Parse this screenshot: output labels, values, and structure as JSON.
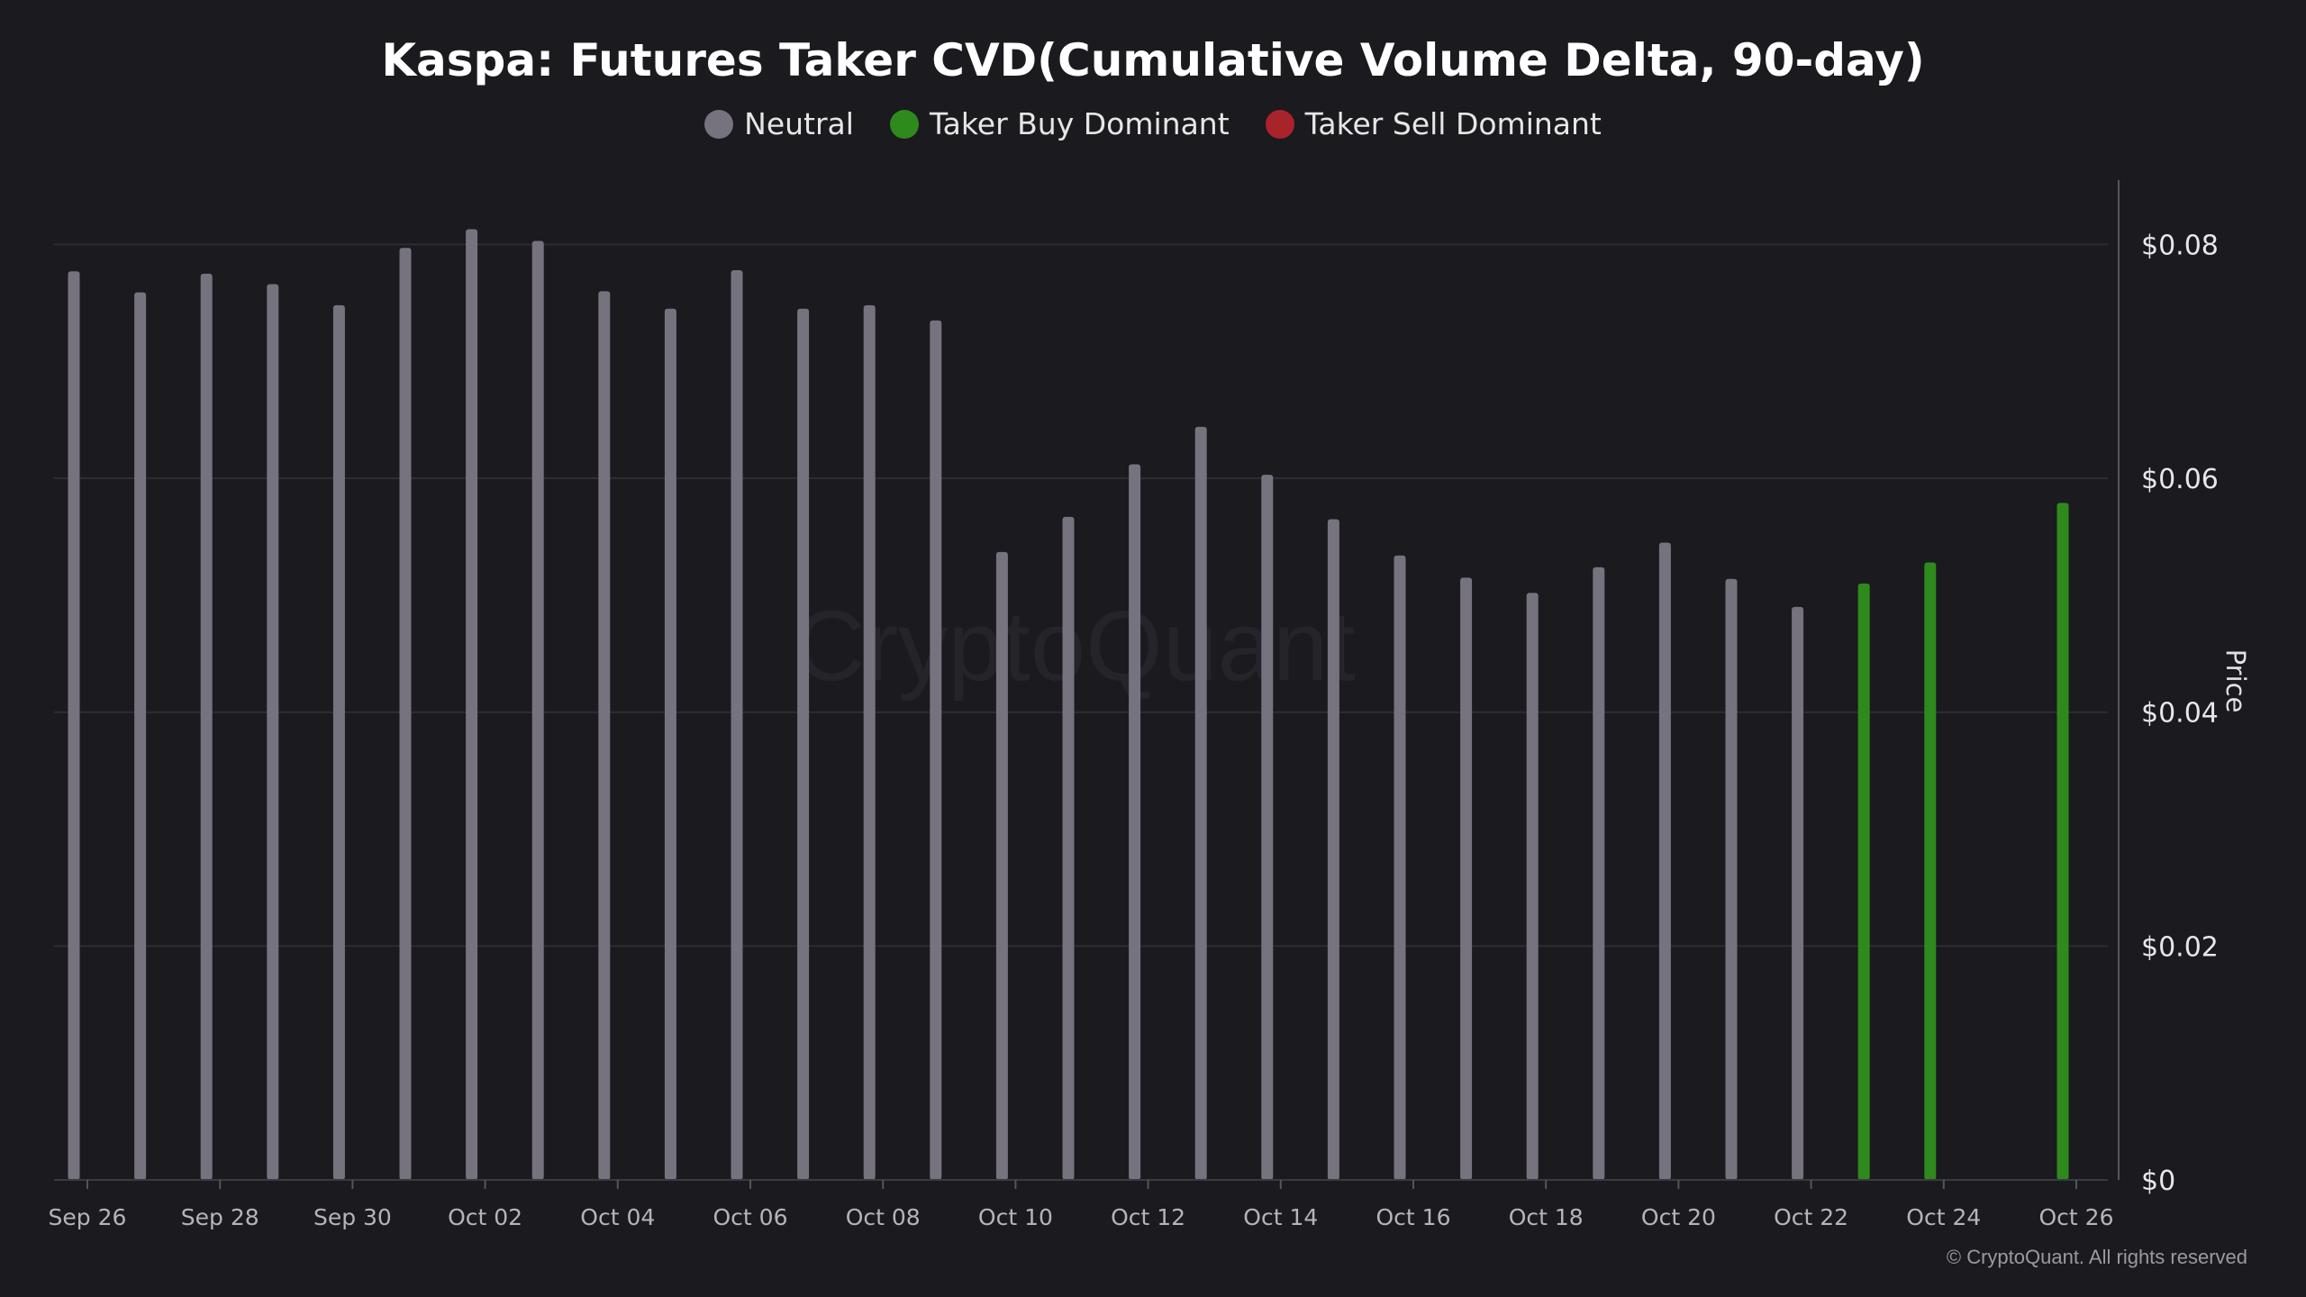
{
  "chart_data": {
    "type": "bar",
    "title": "Kaspa: Futures Taker CVD(Cumulative Volume Delta, 90-day)",
    "legend": [
      {
        "name": "Neutral",
        "color": "#76737f"
      },
      {
        "name": "Taker Buy Dominant",
        "color": "#2f8a1e"
      },
      {
        "name": "Taker Sell Dominant",
        "color": "#a8232a"
      }
    ],
    "categories": [
      "Sep 26",
      "Sep 27",
      "Sep 28",
      "Sep 29",
      "Sep 30",
      "Oct 01",
      "Oct 02",
      "Oct 03",
      "Oct 04",
      "Oct 05",
      "Oct 06",
      "Oct 07",
      "Oct 08",
      "Oct 09",
      "Oct 10",
      "Oct 11",
      "Oct 12",
      "Oct 13",
      "Oct 14",
      "Oct 15",
      "Oct 16",
      "Oct 17",
      "Oct 18",
      "Oct 19",
      "Oct 20",
      "Oct 21",
      "Oct 22",
      "Oct 23",
      "Oct 24",
      "Oct 25",
      "Oct 26"
    ],
    "values": [
      0.0777,
      0.0759,
      0.0775,
      0.0766,
      0.0748,
      0.0797,
      0.0813,
      0.0803,
      0.076,
      0.0745,
      0.0778,
      0.0745,
      0.0748,
      0.0735,
      0.0537,
      0.0567,
      0.0612,
      0.0644,
      0.0603,
      0.0565,
      0.0534,
      0.0515,
      0.0502,
      0.0524,
      0.0545,
      0.0514,
      0.049,
      0.051,
      0.0528,
      null,
      0.0579
    ],
    "signal": [
      "neutral",
      "neutral",
      "neutral",
      "neutral",
      "neutral",
      "neutral",
      "neutral",
      "neutral",
      "neutral",
      "neutral",
      "neutral",
      "neutral",
      "neutral",
      "neutral",
      "neutral",
      "neutral",
      "neutral",
      "neutral",
      "neutral",
      "neutral",
      "neutral",
      "neutral",
      "neutral",
      "neutral",
      "neutral",
      "neutral",
      "neutral",
      "buy",
      "buy",
      "none",
      "buy"
    ],
    "x_tick_labels": [
      "Sep 26",
      "Sep 28",
      "Sep 30",
      "Oct 02",
      "Oct 04",
      "Oct 06",
      "Oct 08",
      "Oct 10",
      "Oct 12",
      "Oct 14",
      "Oct 16",
      "Oct 18",
      "Oct 20",
      "Oct 22",
      "Oct 24",
      "Oct 26"
    ],
    "y_ticks": [
      0,
      0.02,
      0.04,
      0.06,
      0.08
    ],
    "y_tick_labels": [
      "$0",
      "$0.02",
      "$0.04",
      "$0.06",
      "$0.08"
    ],
    "ylim": [
      0,
      0.0855
    ],
    "ylabel": "Price",
    "xlabel": "",
    "grid": true,
    "watermark": "CryptoQuant"
  },
  "copyright": "© CryptoQuant. All rights reserved",
  "colors": {
    "background": "#1a1a1f",
    "neutral": "#76737f",
    "buy": "#2f8a1e",
    "sell": "#a8232a",
    "grid": "#2c2c33",
    "axis_text": "#b4b4bc"
  }
}
